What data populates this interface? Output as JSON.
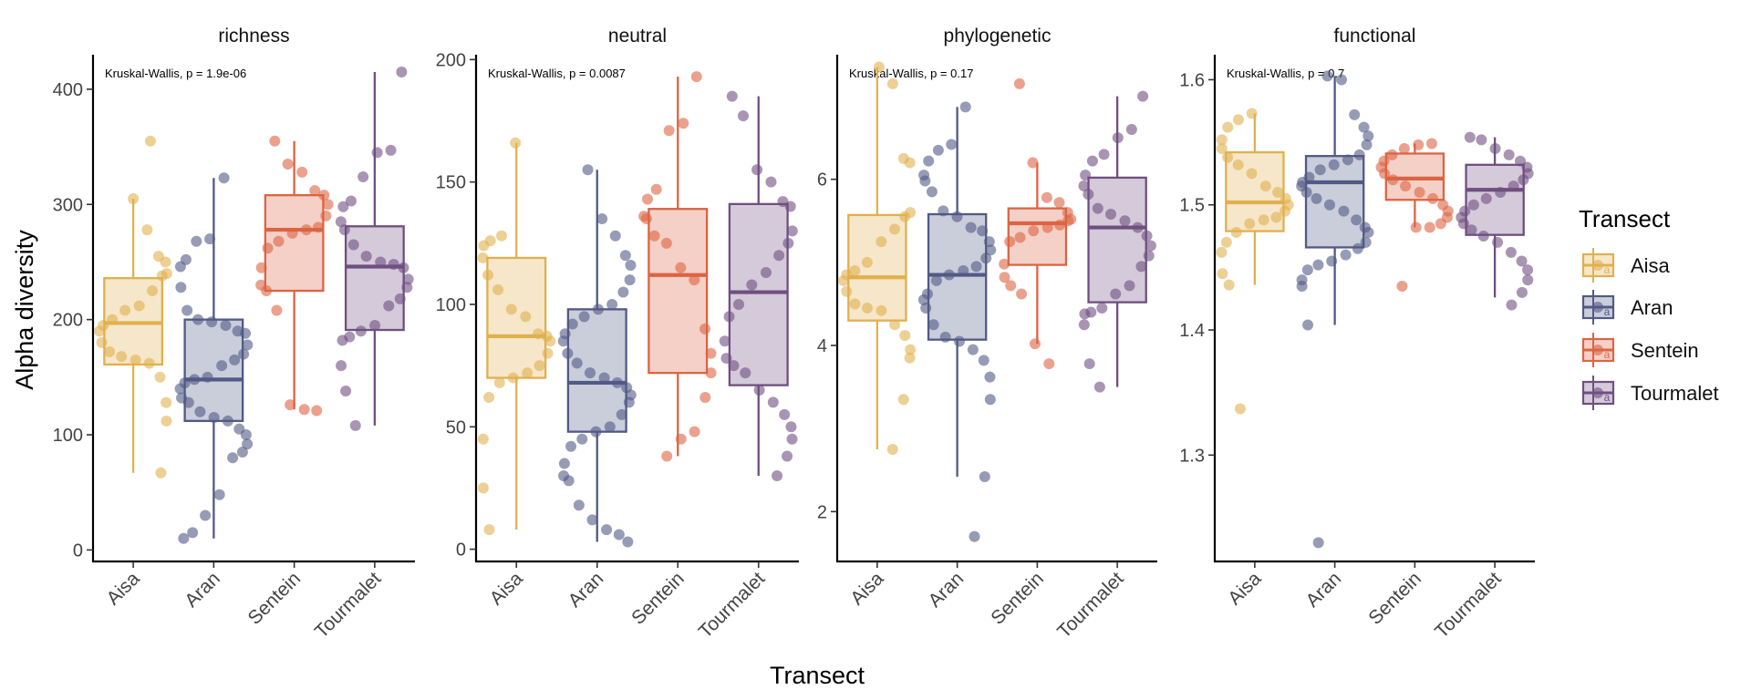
{
  "figure": {
    "ylabel": "Alpha diversity",
    "xlabel": "Transect",
    "legend_title": "Transect",
    "legend_position": "right"
  },
  "groups": [
    {
      "name": "Aisa",
      "color": "#E1B04E"
    },
    {
      "name": "Aran",
      "color": "#515A85"
    },
    {
      "name": "Sentein",
      "color": "#DC6443"
    },
    {
      "name": "Tourmalet",
      "color": "#6F4F80"
    }
  ],
  "chart_data": [
    {
      "type": "box",
      "title": "richness",
      "annotation": "Kruskal-Wallis, p = 1.9e-06",
      "categories": [
        "Aisa",
        "Aran",
        "Sentein",
        "Tourmalet"
      ],
      "ylim": [
        -10,
        430
      ],
      "yticks": [
        0,
        100,
        200,
        300,
        400
      ],
      "ytick_labels": [
        "0",
        "100",
        "200",
        "300",
        "400"
      ],
      "letters": [],
      "boxes": [
        {
          "min": 67,
          "q1": 161,
          "median": 197,
          "q3": 236,
          "max": 305
        },
        {
          "min": 10,
          "q1": 112,
          "median": 148,
          "q3": 200,
          "max": 323
        },
        {
          "min": 122,
          "q1": 225,
          "median": 278,
          "q3": 308,
          "max": 355
        },
        {
          "min": 108,
          "q1": 191,
          "median": 246,
          "q3": 281,
          "max": 415
        }
      ],
      "points": [
        [
          305,
          278,
          255,
          250,
          240,
          238,
          225,
          212,
          208,
          200,
          195,
          190,
          180,
          172,
          168,
          165,
          162,
          150,
          128,
          112,
          67,
          355
        ],
        [
          323,
          270,
          268,
          252,
          246,
          228,
          208,
          200,
          198,
          195,
          190,
          188,
          178,
          170,
          165,
          160,
          150,
          148,
          145,
          140,
          132,
          128,
          120,
          115,
          112,
          105,
          100,
          92,
          85,
          80,
          48,
          30,
          15,
          10
        ],
        [
          355,
          335,
          328,
          312,
          308,
          300,
          290,
          280,
          278,
          275,
          268,
          262,
          245,
          230,
          225,
          208,
          126,
          122,
          121
        ],
        [
          415,
          347,
          345,
          324,
          303,
          298,
          285,
          278,
          265,
          255,
          250,
          248,
          245,
          235,
          228,
          218,
          212,
          195,
          190,
          185,
          182,
          160,
          138,
          108
        ]
      ]
    },
    {
      "type": "box",
      "title": "neutral",
      "annotation": "Kruskal-Wallis, p = 0.0087",
      "categories": [
        "Aisa",
        "Aran",
        "Sentein",
        "Tourmalet"
      ],
      "ylim": [
        -5,
        202
      ],
      "yticks": [
        0,
        50,
        100,
        150,
        200
      ],
      "ytick_labels": [
        "0",
        "50",
        "100",
        "150",
        "200"
      ],
      "letters": [],
      "boxes": [
        {
          "min": 8,
          "q1": 70,
          "median": 87,
          "q3": 119,
          "max": 166
        },
        {
          "min": 3,
          "q1": 48,
          "median": 68,
          "q3": 98,
          "max": 155
        },
        {
          "min": 38,
          "q1": 72,
          "median": 112,
          "q3": 139,
          "max": 193
        },
        {
          "min": 30,
          "q1": 67,
          "median": 105,
          "q3": 141,
          "max": 185
        }
      ],
      "points": [
        [
          166,
          128,
          126,
          124,
          119,
          112,
          106,
          98,
          95,
          88,
          87,
          85,
          80,
          75,
          72,
          70,
          68,
          62,
          45,
          25,
          8
        ],
        [
          155,
          135,
          128,
          120,
          116,
          110,
          105,
          100,
          98,
          95,
          92,
          88,
          85,
          80,
          76,
          72,
          70,
          68,
          66,
          63,
          60,
          55,
          50,
          48,
          45,
          42,
          35,
          30,
          28,
          18,
          12,
          8,
          6,
          3
        ],
        [
          193,
          174,
          171,
          147,
          143,
          136,
          135,
          128,
          125,
          115,
          110,
          90,
          80,
          72,
          62,
          48,
          45,
          38
        ],
        [
          185,
          177,
          155,
          150,
          142,
          140,
          130,
          125,
          120,
          113,
          108,
          100,
          95,
          85,
          78,
          75,
          72,
          65,
          60,
          55,
          50,
          45,
          38,
          30
        ]
      ]
    },
    {
      "type": "box",
      "title": "phylogenetic",
      "annotation": "Kruskal-Wallis, p = 0.17",
      "categories": [
        "Aisa",
        "Aran",
        "Sentein",
        "Tourmalet"
      ],
      "ylim": [
        1.4,
        7.5
      ],
      "yticks": [
        2,
        4,
        6
      ],
      "ytick_labels": [
        "2",
        "4",
        "6"
      ],
      "letters": [],
      "boxes": [
        {
          "min": 2.75,
          "q1": 4.3,
          "median": 4.82,
          "q3": 5.57,
          "max": 7.35
        },
        {
          "min": 2.42,
          "q1": 4.07,
          "median": 4.85,
          "q3": 5.58,
          "max": 6.87
        },
        {
          "min": 4.02,
          "q1": 4.97,
          "median": 5.47,
          "q3": 5.65,
          "max": 6.2
        },
        {
          "min": 3.5,
          "q1": 4.52,
          "median": 5.42,
          "q3": 6.02,
          "max": 7.0
        }
      ],
      "points": [
        [
          7.35,
          7.15,
          6.25,
          6.2,
          5.6,
          5.55,
          5.4,
          5.25,
          5.0,
          4.9,
          4.85,
          4.78,
          4.65,
          4.5,
          4.45,
          4.42,
          4.25,
          4.12,
          3.95,
          3.85,
          3.35,
          2.75
        ],
        [
          6.87,
          6.42,
          6.35,
          6.22,
          6.05,
          5.98,
          5.85,
          5.62,
          5.55,
          5.42,
          5.38,
          5.25,
          5.15,
          5.05,
          4.95,
          4.9,
          4.85,
          4.78,
          4.62,
          4.55,
          4.45,
          4.25,
          4.1,
          4.05,
          3.95,
          3.82,
          3.62,
          3.35,
          2.42,
          1.7
        ],
        [
          7.15,
          6.2,
          5.78,
          5.72,
          5.6,
          5.52,
          5.5,
          5.45,
          5.42,
          5.38,
          5.3,
          5.25,
          4.98,
          4.82,
          4.72,
          4.62,
          4.02,
          3.78
        ],
        [
          7.0,
          6.6,
          6.5,
          6.3,
          6.22,
          6.05,
          5.92,
          5.82,
          5.65,
          5.58,
          5.5,
          5.42,
          5.32,
          5.2,
          5.08,
          4.95,
          4.72,
          4.62,
          4.45,
          4.4,
          4.38,
          4.25,
          3.78,
          3.5
        ]
      ]
    },
    {
      "type": "box",
      "title": "functional",
      "annotation": "Kruskal-Wallis, p = 0.7",
      "categories": [
        "Aisa",
        "Aran",
        "Sentein",
        "Tourmalet"
      ],
      "ylim": [
        1.215,
        1.62
      ],
      "yticks": [
        1.3,
        1.4,
        1.5,
        1.6
      ],
      "ytick_labels": [
        "1.3",
        "1.4",
        "1.5",
        "1.6"
      ],
      "letters": [
        "a",
        "a",
        "a",
        "a"
      ],
      "boxes": [
        {
          "min": 1.436,
          "q1": 1.479,
          "median": 1.502,
          "q3": 1.542,
          "max": 1.573
        },
        {
          "min": 1.404,
          "q1": 1.466,
          "median": 1.518,
          "q3": 1.539,
          "max": 1.603
        },
        {
          "min": 1.482,
          "q1": 1.504,
          "median": 1.521,
          "q3": 1.541,
          "max": 1.549
        },
        {
          "min": 1.426,
          "q1": 1.476,
          "median": 1.512,
          "q3": 1.532,
          "max": 1.554
        }
      ],
      "points": [
        [
          1.573,
          1.568,
          1.562,
          1.552,
          1.545,
          1.538,
          1.532,
          1.525,
          1.515,
          1.51,
          1.505,
          1.5,
          1.495,
          1.49,
          1.488,
          1.485,
          1.478,
          1.47,
          1.462,
          1.445,
          1.436,
          1.337
        ],
        [
          1.603,
          1.6,
          1.572,
          1.562,
          1.555,
          1.548,
          1.54,
          1.536,
          1.532,
          1.528,
          1.522,
          1.518,
          1.515,
          1.51,
          1.505,
          1.5,
          1.495,
          1.488,
          1.482,
          1.478,
          1.47,
          1.465,
          1.46,
          1.455,
          1.452,
          1.448,
          1.44,
          1.435,
          1.404,
          1.23
        ],
        [
          1.549,
          1.548,
          1.545,
          1.54,
          1.535,
          1.53,
          1.525,
          1.52,
          1.515,
          1.51,
          1.505,
          1.5,
          1.495,
          1.49,
          1.485,
          1.482,
          1.482,
          1.435
        ],
        [
          1.554,
          1.552,
          1.545,
          1.54,
          1.535,
          1.53,
          1.525,
          1.52,
          1.515,
          1.51,
          1.505,
          1.5,
          1.495,
          1.49,
          1.485,
          1.48,
          1.475,
          1.47,
          1.462,
          1.455,
          1.448,
          1.44,
          1.43,
          1.42
        ]
      ]
    }
  ]
}
